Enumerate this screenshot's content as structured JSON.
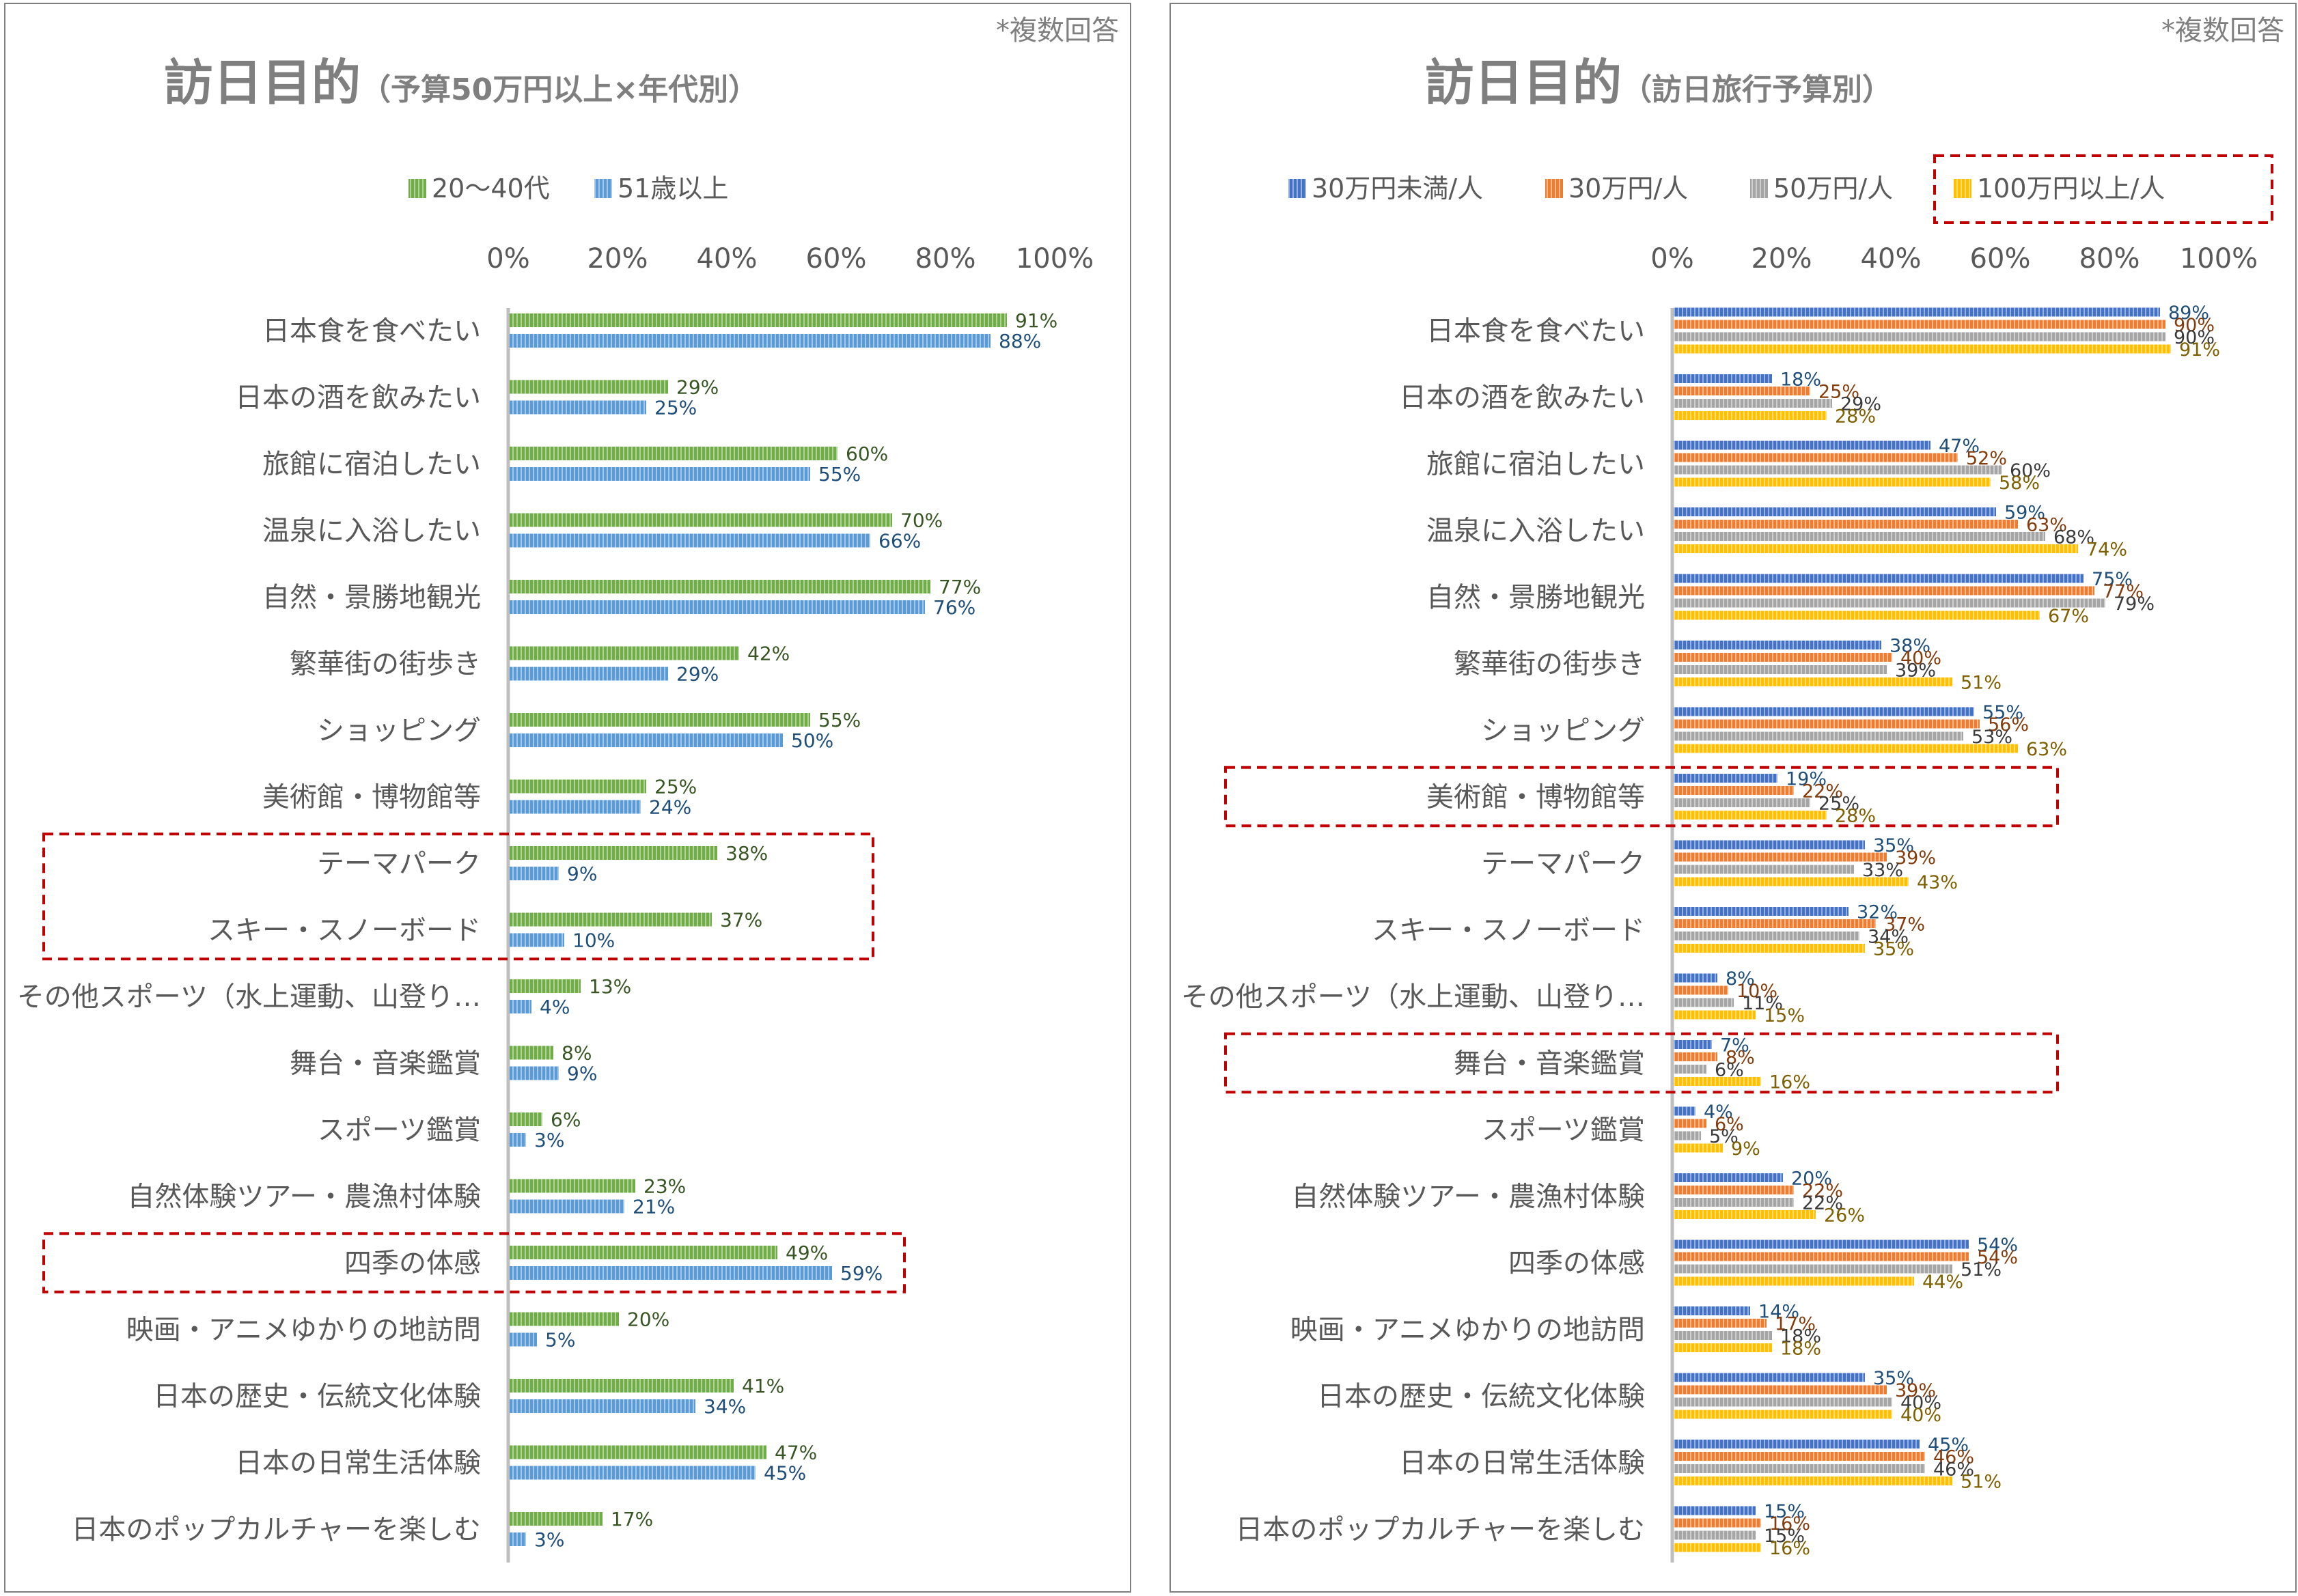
{
  "colors": {
    "green": "#70ad47",
    "lightblue": "#5b9bd5",
    "blue": "#4472c4",
    "orange": "#ed7d31",
    "gray": "#a5a5a5",
    "yellow": "#ffc000",
    "text": "#595959",
    "title": "#7f7f7f",
    "highlight": "#c00000",
    "lbl_green": "#375623",
    "lbl_blue": "#1f4e79",
    "lbl_orange": "#843c0c",
    "lbl_gray": "#3a3a3a",
    "lbl_yellow": "#7f6000"
  },
  "chart_data": [
    {
      "type": "bar",
      "orientation": "horizontal",
      "title": "訪日目的",
      "subtitle": "（予算50万円以上×年代別）",
      "note": "*複数回答",
      "xlim": [
        0,
        100
      ],
      "xticks": [
        "0%",
        "20%",
        "40%",
        "60%",
        "80%",
        "100%"
      ],
      "legend_position": "top",
      "categories": [
        "日本食を食べたい",
        "日本の酒を飲みたい",
        "旅館に宿泊したい",
        "温泉に入浴したい",
        "自然・景勝地観光",
        "繁華街の街歩き",
        "ショッピング",
        "美術館・博物館等",
        "テーマパーク",
        "スキー・スノーボード",
        "その他スポーツ（水上運動、山登り…",
        "舞台・音楽鑑賞",
        "スポーツ鑑賞",
        "自然体験ツアー・農漁村体験",
        "四季の体感",
        "映画・アニメゆかりの地訪問",
        "日本の歴史・伝統文化体験",
        "日本の日常生活体験",
        "日本のポップカルチャーを楽しむ"
      ],
      "series": [
        {
          "name": "20～40代",
          "values": [
            91,
            29,
            60,
            70,
            77,
            42,
            55,
            25,
            38,
            37,
            13,
            8,
            6,
            23,
            49,
            20,
            41,
            47,
            17
          ]
        },
        {
          "name": "51歳以上",
          "values": [
            88,
            25,
            55,
            66,
            76,
            29,
            50,
            24,
            9,
            10,
            4,
            9,
            3,
            21,
            59,
            5,
            34,
            45,
            3
          ]
        }
      ],
      "highlighted_categories": [
        [
          "テーマパーク",
          "スキー・スノーボード"
        ],
        [
          "四季の体感"
        ]
      ]
    },
    {
      "type": "bar",
      "orientation": "horizontal",
      "title": "訪日目的",
      "subtitle": "（訪日旅行予算別）",
      "note": "*複数回答",
      "xlim": [
        0,
        100
      ],
      "xticks": [
        "0%",
        "20%",
        "40%",
        "60%",
        "80%",
        "100%"
      ],
      "legend_position": "top",
      "categories": [
        "日本食を食べたい",
        "日本の酒を飲みたい",
        "旅館に宿泊したい",
        "温泉に入浴したい",
        "自然・景勝地観光",
        "繁華街の街歩き",
        "ショッピング",
        "美術館・博物館等",
        "テーマパーク",
        "スキー・スノーボード",
        "その他スポーツ（水上運動、山登り…",
        "舞台・音楽鑑賞",
        "スポーツ鑑賞",
        "自然体験ツアー・農漁村体験",
        "四季の体感",
        "映画・アニメゆかりの地訪問",
        "日本の歴史・伝統文化体験",
        "日本の日常生活体験",
        "日本のポップカルチャーを楽しむ"
      ],
      "series": [
        {
          "name": "30万円未満/人",
          "values": [
            89,
            18,
            47,
            59,
            75,
            38,
            55,
            19,
            35,
            32,
            8,
            7,
            4,
            20,
            54,
            14,
            35,
            45,
            15
          ]
        },
        {
          "name": "30万円/人",
          "values": [
            90,
            25,
            52,
            63,
            77,
            40,
            56,
            22,
            39,
            37,
            10,
            8,
            6,
            22,
            54,
            17,
            39,
            46,
            16
          ]
        },
        {
          "name": "50万円/人",
          "values": [
            90,
            29,
            60,
            68,
            79,
            39,
            53,
            25,
            33,
            34,
            11,
            6,
            5,
            22,
            51,
            18,
            40,
            46,
            15
          ]
        },
        {
          "name": "100万円以上/人",
          "values": [
            91,
            28,
            58,
            74,
            67,
            51,
            63,
            28,
            43,
            35,
            15,
            16,
            9,
            26,
            44,
            18,
            40,
            51,
            16
          ]
        }
      ],
      "highlighted_categories": [
        [
          "美術館・博物館等"
        ],
        [
          "舞台・音楽鑑賞"
        ]
      ],
      "highlighted_legend": "100万円以上/人"
    }
  ]
}
